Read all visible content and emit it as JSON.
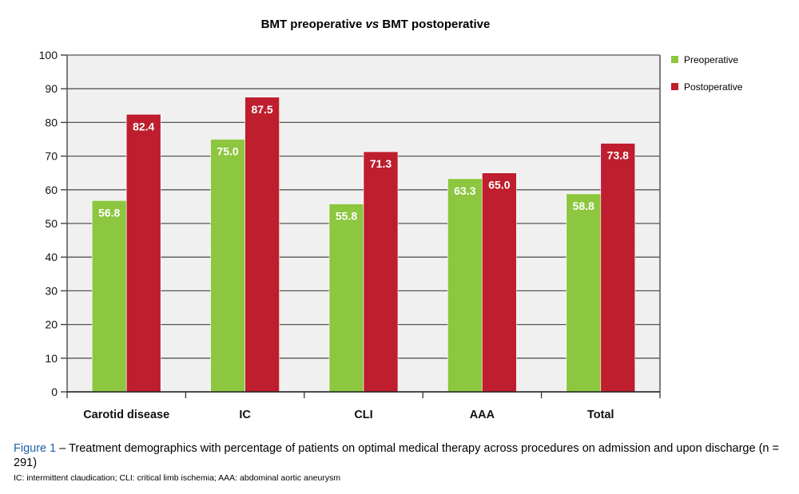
{
  "chart_data": {
    "type": "bar",
    "title_parts": [
      "BMT preoperative ",
      "vs",
      " BMT postoperative"
    ],
    "title": "BMT preoperative vs BMT postoperative",
    "xlabel": "",
    "ylabel": "",
    "ylim": [
      0,
      100
    ],
    "yticks": [
      0,
      10,
      20,
      30,
      40,
      50,
      60,
      70,
      80,
      90,
      100
    ],
    "grid": true,
    "legend_position": "right",
    "categories": [
      "Carotid disease",
      "IC",
      "CLI",
      "AAA",
      "Total"
    ],
    "series": [
      {
        "name": "Preoperative",
        "color": "#8dc63f",
        "values": [
          56.8,
          75.0,
          55.8,
          63.3,
          58.8
        ],
        "labels": [
          "56.8",
          "75.0",
          "55.8",
          "63.3",
          "58.8"
        ]
      },
      {
        "name": "Postoperative",
        "color": "#be1e2d",
        "values": [
          82.4,
          87.5,
          71.3,
          65.0,
          73.8
        ],
        "labels": [
          "82.4",
          "87.5",
          "71.3",
          "65.0",
          "73.8"
        ]
      }
    ]
  },
  "caption": {
    "figure_label": "Figure 1",
    "text": " – Treatment demographics with percentage of patients on optimal medical therapy across procedures on admission and upon discharge (n = 291)",
    "footnote": "IC: intermittent claudication; CLI: critical limb ischemia; AAA: abdominal aortic aneurysm"
  },
  "colors": {
    "plot_background": "#f0f0f0",
    "grid": "#555555",
    "figure_label": "#1f5fa8"
  }
}
